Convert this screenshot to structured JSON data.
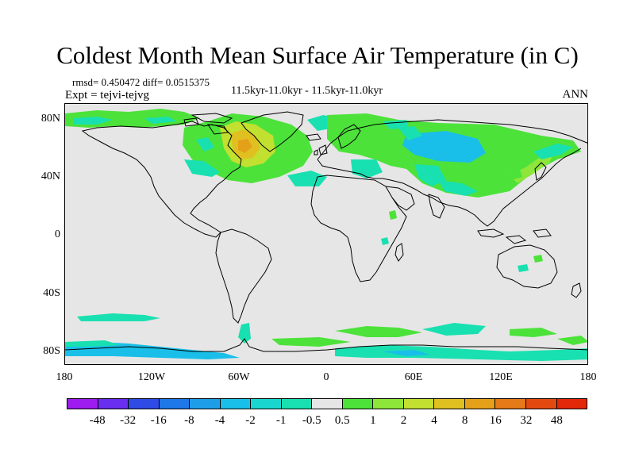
{
  "title": "Coldest Month Mean Surface Air Temperature (in C)",
  "stats": "rmsd= 0.450472 diff= 0.0515375",
  "experiment": "Expt = tejvi-tejvg",
  "period": "11.5kyr-11.0kyr - 11.5kyr-11.0kyr",
  "season": "ANN",
  "lat_ticks": [
    "80N",
    "40N",
    "0",
    "40S",
    "80S"
  ],
  "lon_ticks": [
    "180",
    "120W",
    "60W",
    "0",
    "60E",
    "120E",
    "180"
  ],
  "colorbar": {
    "colors": [
      "#9f1cf0",
      "#6a2ef0",
      "#2f4be6",
      "#1f78e8",
      "#1f9ee8",
      "#19bfe8",
      "#19d7d0",
      "#19e0b0",
      "#e6e6e6",
      "#4ce23a",
      "#8ee63a",
      "#c2e030",
      "#e0c020",
      "#e4a018",
      "#e47a18",
      "#e44a10",
      "#e22808"
    ],
    "labels": [
      "-48",
      "-32",
      "-16",
      "-8",
      "-4",
      "-2",
      "-1",
      "-0.5",
      "0.5",
      "1",
      "2",
      "4",
      "8",
      "16",
      "32",
      "48"
    ]
  },
  "colors": {
    "background": "#e6e6e6",
    "coast": "#000000",
    "neg_small": "#19e0b0",
    "neg_med": "#19bfe8",
    "pos_small": "#4ce23a",
    "pos_med": "#8ee63a",
    "pos_large": "#c2e030",
    "pos_xl": "#e0c020",
    "pos_xxl": "#e4a018"
  }
}
